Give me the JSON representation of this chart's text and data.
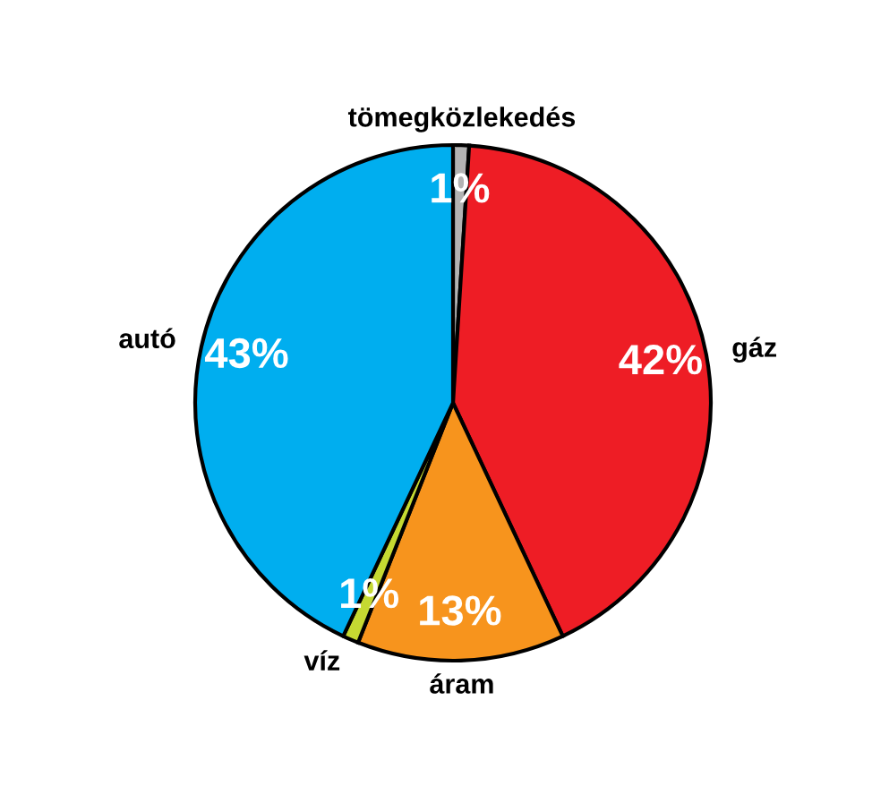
{
  "chart_data": {
    "type": "pie",
    "categories": [
      "tömegközlekedés",
      "gáz",
      "áram",
      "víz",
      "autó"
    ],
    "values": [
      1,
      42,
      13,
      1,
      43
    ],
    "colors": [
      "#b3b3b3",
      "#ee1d25",
      "#f7941d",
      "#c5d932",
      "#00aeef"
    ],
    "value_labels": [
      "1%",
      "42%",
      "13%",
      "1%",
      "43%"
    ],
    "legend": false
  }
}
